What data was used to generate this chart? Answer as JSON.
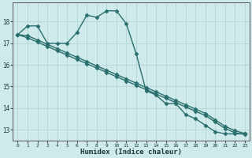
{
  "xlabel": "Humidex (Indice chaleur)",
  "ylabel": "",
  "background_color": "#ceeaea",
  "grid_color": "#b8d8d8",
  "line_color": "#2a6e6e",
  "xlim": [
    -0.5,
    23.5
  ],
  "ylim": [
    12.5,
    18.9
  ],
  "yticks": [
    13,
    14,
    15,
    16,
    17,
    18
  ],
  "xticks": [
    0,
    1,
    2,
    3,
    4,
    5,
    6,
    7,
    8,
    9,
    10,
    11,
    12,
    13,
    14,
    15,
    16,
    17,
    18,
    19,
    20,
    21,
    22,
    23
  ],
  "series": {
    "line1_x": [
      0,
      1,
      2,
      3,
      4,
      5,
      6,
      7,
      8,
      9,
      10,
      11,
      12,
      13,
      14,
      15,
      16,
      17,
      18,
      19,
      20,
      21,
      22,
      23
    ],
    "line1_y": [
      17.4,
      17.8,
      17.8,
      17.0,
      17.0,
      17.0,
      17.5,
      18.3,
      18.2,
      18.5,
      18.5,
      17.9,
      16.5,
      14.8,
      14.6,
      14.2,
      14.2,
      13.7,
      13.5,
      13.2,
      12.9,
      12.8,
      12.8,
      12.8
    ],
    "line2_x": [
      0,
      1,
      2,
      3,
      4,
      5,
      6,
      7,
      8,
      9,
      10,
      11,
      12,
      13,
      14,
      15,
      16,
      17,
      18,
      19,
      20,
      21,
      22,
      23
    ],
    "line2_y": [
      17.4,
      17.35,
      17.15,
      16.95,
      16.75,
      16.55,
      16.35,
      16.15,
      15.95,
      15.75,
      15.55,
      15.35,
      15.15,
      14.95,
      14.75,
      14.55,
      14.35,
      14.15,
      13.95,
      13.75,
      13.45,
      13.15,
      12.95,
      12.82
    ],
    "line3_x": [
      0,
      1,
      2,
      3,
      4,
      5,
      6,
      7,
      8,
      9,
      10,
      11,
      12,
      13,
      14,
      15,
      16,
      17,
      18,
      19,
      20,
      21,
      22,
      23
    ],
    "line3_y": [
      17.4,
      17.25,
      17.05,
      16.85,
      16.65,
      16.45,
      16.25,
      16.05,
      15.85,
      15.65,
      15.45,
      15.25,
      15.05,
      14.85,
      14.65,
      14.45,
      14.25,
      14.05,
      13.85,
      13.65,
      13.35,
      13.05,
      12.85,
      12.78
    ]
  },
  "marker": "D",
  "marker_size": 2.5,
  "line_width": 1.0
}
